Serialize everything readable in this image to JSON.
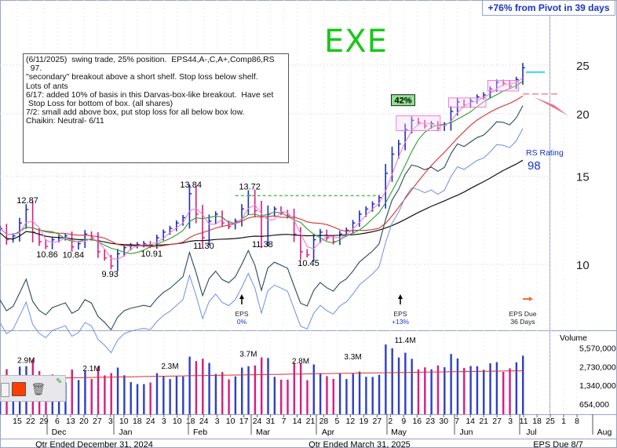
{
  "header": {
    "pivot_text": "+76% from Pivot in 39 days"
  },
  "annotation": {
    "handwritten": "EXE"
  },
  "notes": {
    "lines": [
      "(6/11/2025)  swing trade, 25% position.  EPS44,A-,C,A+,Comp86,RS",
      "  97.",
      "\"secondary\" breakout above a short shelf. Stop loss below shelf.",
      "Lots of ants",
      "6/17: added 10% of basis in this Darvas-box-like breakout.  Have set",
      " Stop Loss for bottom of box. (all shares)",
      "7/2: small add above box, put stop loss for all below box low.",
      "",
      "Chaikin: Neutral- 6/11"
    ]
  },
  "toolbar": {
    "paint_swatch_color": "#ff3d00",
    "trash_icon": "trash-icon",
    "edit_icon": "edit-icon"
  },
  "chart_data": {
    "type": "candlestick",
    "price_axis": {
      "scale": "log",
      "ticks": [
        10,
        15,
        20,
        25
      ],
      "labels": [
        "10",
        "15",
        "20",
        "25"
      ]
    },
    "volume_axis": {
      "title": "Volume",
      "ticks": [
        654000,
        1340000,
        2730000,
        5570000
      ],
      "labels": [
        "654,000",
        "1,340,000",
        "2,730,000",
        "5,570,000"
      ]
    },
    "x_axis": {
      "days": [
        "15",
        "22",
        "29",
        "6",
        "13",
        "20",
        "27",
        "3",
        "10",
        "18",
        "24",
        "3",
        "10",
        "18",
        "24",
        "3",
        "10",
        "17",
        "24",
        "31",
        "7",
        "14",
        "21",
        "28",
        "5",
        "12",
        "19",
        "27",
        "2",
        "9",
        "16",
        "23",
        "30",
        "7",
        "14",
        "21",
        "27",
        "3",
        "11",
        "18",
        "25",
        "1",
        "8"
      ],
      "months": [
        "Dec",
        "Jan",
        "Feb",
        "Mar",
        "Apr",
        "May",
        "Jun",
        "Jul",
        "Aug"
      ],
      "quarters": [
        "Qtr Ended December 31, 2024",
        "Qtr Ended March 31, 2025",
        "EPS Due 8/7"
      ]
    },
    "price_labels": [
      {
        "value": "12.87"
      },
      {
        "value": "10.86"
      },
      {
        "value": "10.84"
      },
      {
        "value": "9.93"
      },
      {
        "value": "10.91"
      },
      {
        "value": "13.84"
      },
      {
        "value": "11.30"
      },
      {
        "value": "13.72"
      },
      {
        "value": "11.38"
      },
      {
        "value": "10.45"
      }
    ],
    "box_labels": [
      {
        "value": "42%"
      }
    ],
    "rs_rating": {
      "label": "RS Rating",
      "value": "98"
    },
    "eps_events": [
      {
        "label": "EPS",
        "change": "0%"
      },
      {
        "label": "EPS",
        "change": "+13%"
      },
      {
        "label": "EPS Due",
        "note": "36 Days"
      }
    ],
    "volume_labels": [
      "2.9M",
      "2.1M",
      "2.3M",
      "3.7M",
      "2.8M",
      "3.3M",
      "11.4M"
    ],
    "series": [
      {
        "name": "price_close",
        "values": [
          11.8,
          11.2,
          11.4,
          12.1,
          12.87,
          11.6,
          11.1,
          10.86,
          11.2,
          11.3,
          11.4,
          10.84,
          11.0,
          11.5,
          11.3,
          10.6,
          10.3,
          9.93,
          10.5,
          10.8,
          10.9,
          10.95,
          11.0,
          10.91,
          11.3,
          11.6,
          11.8,
          12.1,
          12.4,
          13.84,
          12.6,
          11.3,
          12.2,
          12.6,
          12.1,
          11.9,
          12.2,
          12.9,
          13.72,
          12.8,
          11.38,
          12.6,
          12.9,
          12.7,
          12.5,
          11.5,
          10.6,
          10.45,
          11.2,
          11.6,
          11.3,
          11.1,
          11.5,
          11.7,
          12.1,
          12.6,
          12.9,
          13.2,
          13.6,
          15.2,
          16.6,
          17.4,
          18.6,
          19.4,
          19.2,
          18.9,
          19.1,
          18.7,
          19.0,
          20.2,
          21.1,
          20.8,
          21.2,
          21.6,
          21.8,
          22.4,
          23.1,
          23.0,
          22.7,
          23.4,
          24.7
        ]
      }
    ],
    "annotations": [
      "42%",
      "+76% from Pivot in 39 days"
    ]
  }
}
